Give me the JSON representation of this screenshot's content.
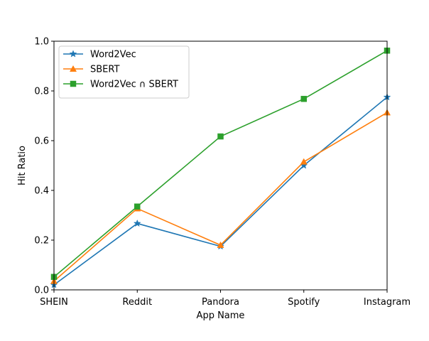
{
  "chart_data": {
    "type": "line",
    "title": "",
    "xlabel": "App Name",
    "ylabel": "Hit Ratio",
    "categories": [
      "SHEIN",
      "Reddit",
      "Pandora",
      "Spotify",
      "Instagram"
    ],
    "ylim": [
      0,
      1.0
    ],
    "yticks": [
      "0.0",
      "0.2",
      "0.4",
      "0.6",
      "0.8",
      "1.0"
    ],
    "grid": false,
    "legend_position": "top-left",
    "series": [
      {
        "name": "Word2Vec",
        "color": "#1f77b4",
        "marker": "star",
        "values": [
          0.02,
          0.267,
          0.175,
          0.5,
          0.775
        ]
      },
      {
        "name": "SBERT",
        "color": "#ff7f0e",
        "marker": "triangle-up",
        "values": [
          0.035,
          0.327,
          0.18,
          0.515,
          0.713
        ]
      },
      {
        "name": "Word2Vec ∩ SBERT",
        "color": "#2ca02c",
        "marker": "square",
        "values": [
          0.052,
          0.335,
          0.617,
          0.768,
          0.962
        ]
      }
    ]
  }
}
